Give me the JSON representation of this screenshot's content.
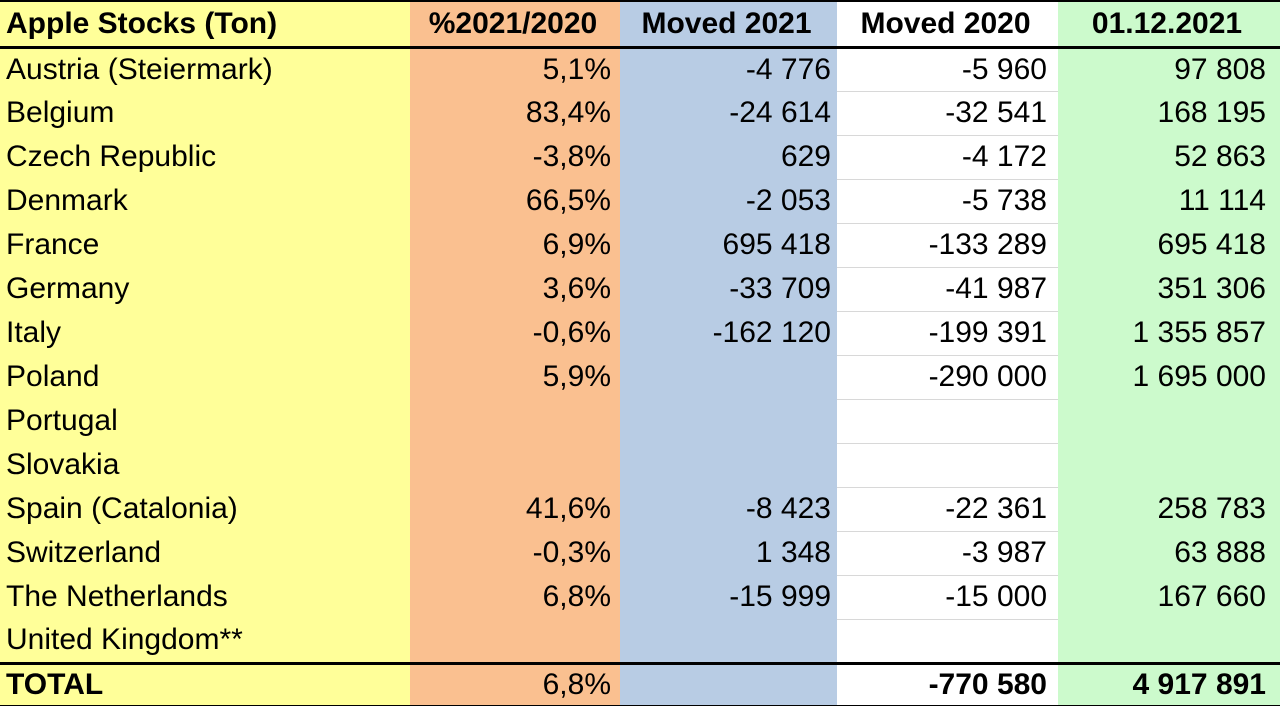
{
  "chart_data": {
    "type": "table",
    "title": "Apple Stocks (Ton)",
    "columns": [
      "Apple Stocks (Ton)",
      "%2021/2020",
      "Moved 2021",
      "Moved 2020",
      "01.12.2021"
    ],
    "rows": [
      [
        "Austria (Steiermark)",
        "5,1%",
        "-4 776",
        "-5 960",
        "97 808"
      ],
      [
        "Belgium",
        "83,4%",
        "-24 614",
        "-32 541",
        "168 195"
      ],
      [
        "Czech Republic",
        "-3,8%",
        "629",
        "-4 172",
        "52 863"
      ],
      [
        "Denmark",
        "66,5%",
        "-2 053",
        "-5 738",
        "11 114"
      ],
      [
        "France",
        "6,9%",
        "695 418",
        "-133 289",
        "695 418"
      ],
      [
        "Germany",
        "3,6%",
        "-33 709",
        "-41 987",
        "351 306"
      ],
      [
        "Italy",
        "-0,6%",
        "-162 120",
        "-199 391",
        "1 355 857"
      ],
      [
        "Poland",
        "5,9%",
        "",
        "-290 000",
        "1 695 000"
      ],
      [
        "Portugal",
        "",
        "",
        "",
        ""
      ],
      [
        "Slovakia",
        "",
        "",
        "",
        ""
      ],
      [
        "Spain (Catalonia)",
        "41,6%",
        "-8 423",
        "-22 361",
        "258 783"
      ],
      [
        "Switzerland",
        "-0,3%",
        "1 348",
        "-3 987",
        "63 888"
      ],
      [
        "The Netherlands",
        "6,8%",
        "-15 999",
        "-15 000",
        "167 660"
      ],
      [
        "United Kingdom**",
        "",
        "",
        "",
        ""
      ]
    ],
    "total_row": [
      "TOTAL",
      "6,8%",
      "",
      "-770 580",
      "4 917 891"
    ],
    "layout": {
      "grid": "gray row dividers only in Moved 2020 column",
      "rules": "black rule under header, above total row, and at table top/bottom"
    }
  },
  "colors": {
    "col_country_bg": "#FFFF99",
    "col_pct_bg": "#FAC090",
    "col_moved2021_bg": "#B8CCE4",
    "col_moved2020_bg": "#FFFFFF",
    "col_stock_bg": "#CCFACC",
    "grid_line": "#D8D8D8",
    "rule": "#000000",
    "text": "#000000"
  }
}
